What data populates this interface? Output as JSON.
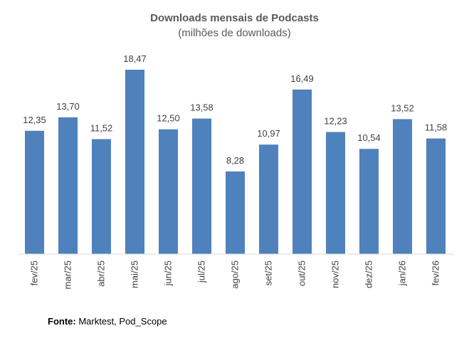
{
  "chart_data": {
    "type": "bar",
    "title": "Downloads mensais de Podcasts",
    "subtitle": "(milhões de downloads)",
    "categories": [
      "fev/25",
      "mar/25",
      "abr/25",
      "mai/25",
      "jun/25",
      "jul/25",
      "ago/25",
      "set/25",
      "out/25",
      "nov/25",
      "dez/25",
      "jan/26",
      "fev/26"
    ],
    "values": [
      12.35,
      13.7,
      11.52,
      18.47,
      12.5,
      13.58,
      8.28,
      10.97,
      16.49,
      12.23,
      10.54,
      13.52,
      11.58
    ],
    "value_labels": [
      "12,35",
      "13,70",
      "11,52",
      "18,47",
      "12,50",
      "13,58",
      "8,28",
      "10,97",
      "16,49",
      "12,23",
      "10,54",
      "13,52",
      "11,58"
    ],
    "ylim": [
      0,
      18.47
    ],
    "grid": false,
    "bar_color": "#4f81bd",
    "axis_color": "#d9d9d9"
  },
  "source": {
    "label": "Fonte:",
    "text": "Marktest, Pod_Scope"
  }
}
